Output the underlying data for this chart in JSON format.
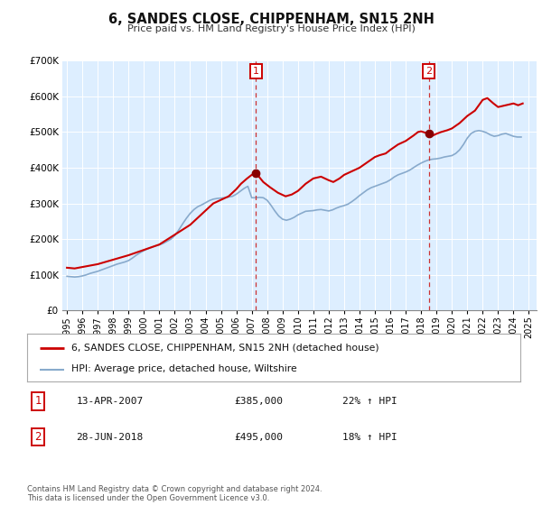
{
  "title": "6, SANDES CLOSE, CHIPPENHAM, SN15 2NH",
  "subtitle": "Price paid vs. HM Land Registry's House Price Index (HPI)",
  "legend_line1": "6, SANDES CLOSE, CHIPPENHAM, SN15 2NH (detached house)",
  "legend_line2": "HPI: Average price, detached house, Wiltshire",
  "annotation1_date": "13-APR-2007",
  "annotation1_price": "£385,000",
  "annotation1_hpi": "22% ↑ HPI",
  "annotation1_year": 2007.28,
  "annotation1_value": 385000,
  "annotation2_date": "28-JUN-2018",
  "annotation2_price": "£495,000",
  "annotation2_hpi": "18% ↑ HPI",
  "annotation2_year": 2018.49,
  "annotation2_value": 495000,
  "ylim": [
    0,
    700000
  ],
  "yticks": [
    0,
    100000,
    200000,
    300000,
    400000,
    500000,
    600000,
    700000
  ],
  "ytick_labels": [
    "£0",
    "£100K",
    "£200K",
    "£300K",
    "£400K",
    "£500K",
    "£600K",
    "£700K"
  ],
  "xlim_start": 1994.7,
  "xlim_end": 2025.5,
  "xticks": [
    1995,
    1996,
    1997,
    1998,
    1999,
    2000,
    2001,
    2002,
    2003,
    2004,
    2005,
    2006,
    2007,
    2008,
    2009,
    2010,
    2011,
    2012,
    2013,
    2014,
    2015,
    2016,
    2017,
    2018,
    2019,
    2020,
    2021,
    2022,
    2023,
    2024,
    2025
  ],
  "background_color": "#ffffff",
  "plot_bg_color": "#ddeeff",
  "grid_color": "#ffffff",
  "line1_color": "#cc0000",
  "line2_color": "#88aacc",
  "marker_color": "#880000",
  "vline_color": "#cc3333",
  "annotation_box_color": "#cc0000",
  "footer": "Contains HM Land Registry data © Crown copyright and database right 2024.\nThis data is licensed under the Open Government Licence v3.0.",
  "hpi_data_x": [
    1995.0,
    1995.25,
    1995.5,
    1995.75,
    1996.0,
    1996.25,
    1996.5,
    1996.75,
    1997.0,
    1997.25,
    1997.5,
    1997.75,
    1998.0,
    1998.25,
    1998.5,
    1998.75,
    1999.0,
    1999.25,
    1999.5,
    1999.75,
    2000.0,
    2000.25,
    2000.5,
    2000.75,
    2001.0,
    2001.25,
    2001.5,
    2001.75,
    2002.0,
    2002.25,
    2002.5,
    2002.75,
    2003.0,
    2003.25,
    2003.5,
    2003.75,
    2004.0,
    2004.25,
    2004.5,
    2004.75,
    2005.0,
    2005.25,
    2005.5,
    2005.75,
    2006.0,
    2006.25,
    2006.5,
    2006.75,
    2007.0,
    2007.25,
    2007.5,
    2007.75,
    2008.0,
    2008.25,
    2008.5,
    2008.75,
    2009.0,
    2009.25,
    2009.5,
    2009.75,
    2010.0,
    2010.25,
    2010.5,
    2010.75,
    2011.0,
    2011.25,
    2011.5,
    2011.75,
    2012.0,
    2012.25,
    2012.5,
    2012.75,
    2013.0,
    2013.25,
    2013.5,
    2013.75,
    2014.0,
    2014.25,
    2014.5,
    2014.75,
    2015.0,
    2015.25,
    2015.5,
    2015.75,
    2016.0,
    2016.25,
    2016.5,
    2016.75,
    2017.0,
    2017.25,
    2017.5,
    2017.75,
    2018.0,
    2018.25,
    2018.5,
    2018.75,
    2019.0,
    2019.25,
    2019.5,
    2019.75,
    2020.0,
    2020.25,
    2020.5,
    2020.75,
    2021.0,
    2021.25,
    2021.5,
    2021.75,
    2022.0,
    2022.25,
    2022.5,
    2022.75,
    2023.0,
    2023.25,
    2023.5,
    2023.75,
    2024.0,
    2024.25,
    2024.5
  ],
  "hpi_data_y": [
    96000,
    95000,
    94000,
    95000,
    97000,
    100000,
    104000,
    107000,
    110000,
    114000,
    118000,
    122000,
    126000,
    130000,
    133000,
    136000,
    140000,
    147000,
    155000,
    162000,
    168000,
    173000,
    177000,
    181000,
    184000,
    188000,
    194000,
    200000,
    210000,
    225000,
    242000,
    258000,
    272000,
    283000,
    291000,
    296000,
    302000,
    308000,
    312000,
    314000,
    315000,
    316000,
    318000,
    320000,
    326000,
    334000,
    342000,
    348000,
    316000,
    316000,
    317000,
    316000,
    309000,
    295000,
    279000,
    265000,
    256000,
    253000,
    256000,
    261000,
    268000,
    273000,
    278000,
    279000,
    280000,
    282000,
    283000,
    281000,
    279000,
    282000,
    287000,
    291000,
    294000,
    298000,
    305000,
    313000,
    322000,
    330000,
    338000,
    344000,
    348000,
    352000,
    356000,
    360000,
    366000,
    374000,
    380000,
    384000,
    388000,
    393000,
    400000,
    407000,
    413000,
    418000,
    422000,
    424000,
    425000,
    427000,
    430000,
    432000,
    434000,
    440000,
    450000,
    465000,
    483000,
    496000,
    502000,
    504000,
    502000,
    498000,
    492000,
    488000,
    490000,
    494000,
    496000,
    492000,
    488000,
    486000,
    486000
  ],
  "price_data_x": [
    1995.0,
    1995.5,
    1997.0,
    1999.0,
    2001.0,
    2003.0,
    2004.5,
    2005.0,
    2005.5,
    2006.0,
    2006.3,
    2006.7,
    2007.0,
    2007.28,
    2007.75,
    2008.2,
    2008.7,
    2009.2,
    2009.6,
    2010.0,
    2010.5,
    2011.0,
    2011.5,
    2012.0,
    2012.3,
    2012.7,
    2013.0,
    2013.5,
    2014.0,
    2014.5,
    2015.0,
    2015.3,
    2015.7,
    2016.0,
    2016.5,
    2017.0,
    2017.5,
    2017.8,
    2018.0,
    2018.49,
    2018.75,
    2019.0,
    2019.3,
    2019.7,
    2020.0,
    2020.5,
    2021.0,
    2021.5,
    2022.0,
    2022.3,
    2022.7,
    2023.0,
    2023.5,
    2024.0,
    2024.3,
    2024.6
  ],
  "price_data_y": [
    120000,
    118000,
    130000,
    155000,
    185000,
    240000,
    300000,
    310000,
    320000,
    340000,
    355000,
    370000,
    380000,
    385000,
    360000,
    345000,
    330000,
    320000,
    325000,
    335000,
    355000,
    370000,
    375000,
    365000,
    360000,
    370000,
    380000,
    390000,
    400000,
    415000,
    430000,
    435000,
    440000,
    450000,
    465000,
    475000,
    490000,
    500000,
    502000,
    495000,
    490000,
    495000,
    500000,
    505000,
    510000,
    525000,
    545000,
    560000,
    590000,
    595000,
    580000,
    570000,
    575000,
    580000,
    575000,
    580000
  ]
}
